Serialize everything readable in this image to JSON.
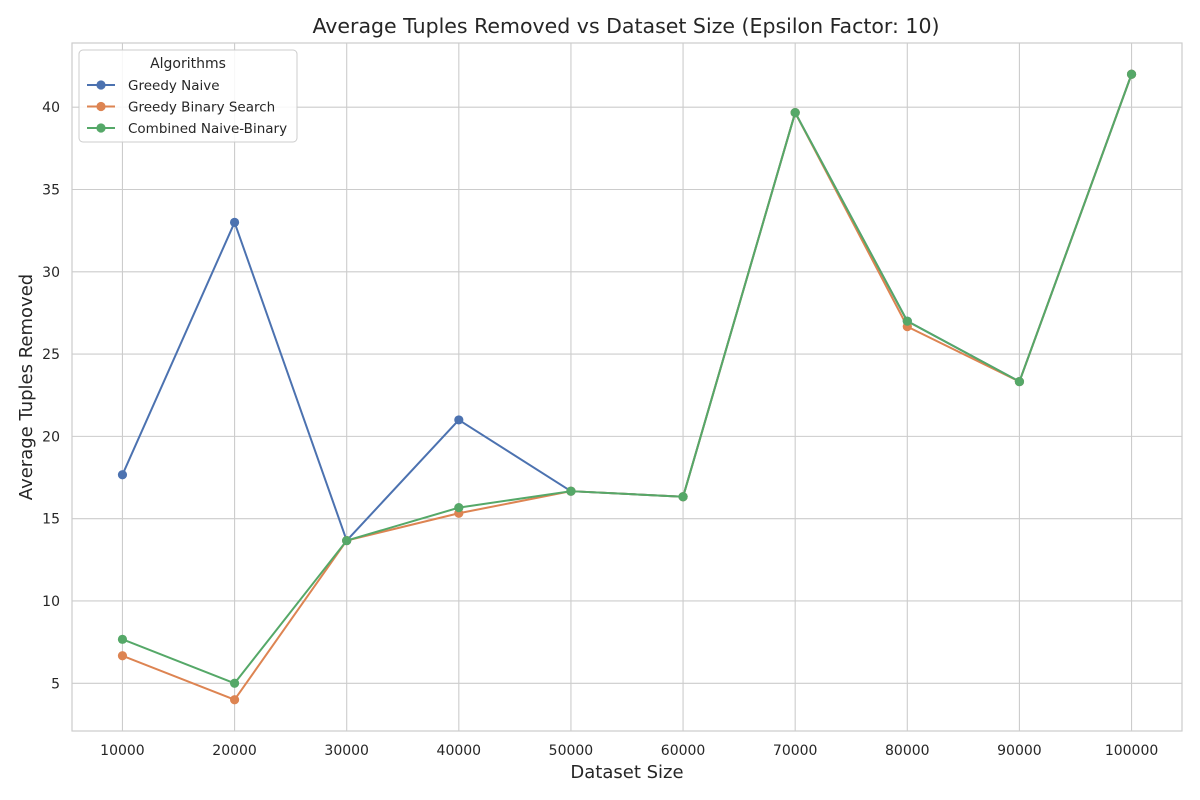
{
  "chart_data": {
    "type": "line",
    "title": "Average Tuples Removed vs Dataset Size (Epsilon Factor: 10)",
    "xlabel": "Dataset Size",
    "ylabel": "Average Tuples Removed",
    "x": [
      10000,
      20000,
      30000,
      40000,
      50000,
      60000,
      70000,
      80000,
      90000,
      100000
    ],
    "x_tick_labels": [
      "10000",
      "20000",
      "30000",
      "40000",
      "50000",
      "60000",
      "70000",
      "80000",
      "90000",
      "100000"
    ],
    "y_ticks": [
      5,
      10,
      15,
      20,
      25,
      30,
      35,
      40
    ],
    "y_tick_labels": [
      "5",
      "10",
      "15",
      "20",
      "25",
      "30",
      "35",
      "40"
    ],
    "xlim": [
      5500,
      104500
    ],
    "ylim": [
      2.1,
      43.9
    ],
    "grid": true,
    "legend_title": "Algorithms",
    "legend_placement": "top-left",
    "marker": "circle",
    "series": [
      {
        "name": "Greedy Naive",
        "color": "#4c72b0",
        "values": [
          17.67,
          33.0,
          13.67,
          21.0,
          16.67,
          16.33,
          39.67,
          27.0,
          23.33,
          42.0
        ]
      },
      {
        "name": "Greedy Binary Search",
        "color": "#dd8452",
        "values": [
          6.67,
          4.0,
          13.67,
          15.33,
          16.67,
          16.33,
          39.67,
          26.67,
          23.33,
          42.0
        ]
      },
      {
        "name": "Combined Naive-Binary",
        "color": "#55a868",
        "values": [
          7.67,
          5.0,
          13.67,
          15.67,
          16.67,
          16.33,
          39.67,
          27.0,
          23.33,
          42.0
        ]
      }
    ]
  }
}
